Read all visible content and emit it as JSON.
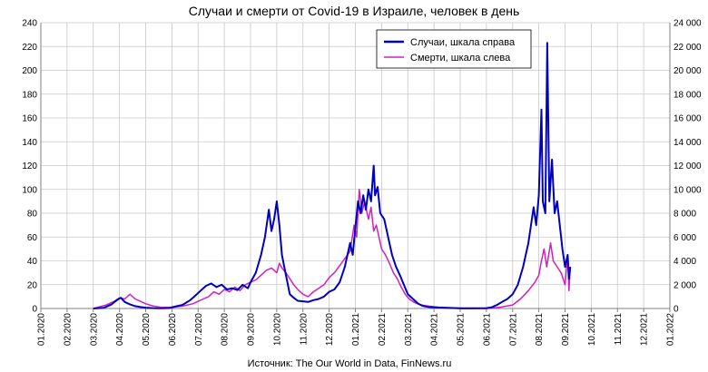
{
  "chart_data": {
    "type": "line",
    "title": "Случаи и смерти от Covid-19 в Израиле, человек в день",
    "source": "Источник: The Our World in Data, FinNews.ru",
    "x_ticks": [
      "01.2020",
      "02.2020",
      "03.2020",
      "04.2020",
      "05.2020",
      "06.2020",
      "07.2020",
      "08.2020",
      "09.2020",
      "10.2020",
      "11.2020",
      "12.2020",
      "01.2021",
      "02.2021",
      "03.2021",
      "04.2021",
      "05.2021",
      "06.2021",
      "07.2021",
      "08.2021",
      "09.2021",
      "10.2021",
      "11.2021",
      "12.2021",
      "01.2022"
    ],
    "y_left": {
      "ticks": [
        "0",
        "20",
        "40",
        "60",
        "80",
        "100",
        "120",
        "140",
        "160",
        "180",
        "200",
        "220",
        "240"
      ],
      "lim": [
        0,
        240
      ]
    },
    "y_right": {
      "ticks": [
        "0",
        "2 000",
        "4 000",
        "6 000",
        "8 000",
        "10 000",
        "12 000",
        "14 000",
        "16 000",
        "18 000",
        "20 000",
        "22 000",
        "24 000"
      ],
      "lim": [
        0,
        24000
      ]
    },
    "legend": {
      "position": "top-right"
    },
    "grid": true,
    "series": [
      {
        "name": "Случаи, шкала справа",
        "axis": "right",
        "color": "#0000c0",
        "points": [
          [
            2.0,
            0
          ],
          [
            2.4,
            50
          ],
          [
            2.7,
            350
          ],
          [
            2.9,
            700
          ],
          [
            3.05,
            900
          ],
          [
            3.2,
            550
          ],
          [
            3.4,
            350
          ],
          [
            3.6,
            200
          ],
          [
            3.8,
            120
          ],
          [
            4.0,
            70
          ],
          [
            4.3,
            30
          ],
          [
            4.6,
            20
          ],
          [
            4.9,
            40
          ],
          [
            5.1,
            150
          ],
          [
            5.4,
            300
          ],
          [
            5.7,
            700
          ],
          [
            5.9,
            1100
          ],
          [
            6.1,
            1500
          ],
          [
            6.3,
            1900
          ],
          [
            6.5,
            2100
          ],
          [
            6.7,
            1800
          ],
          [
            6.9,
            2000
          ],
          [
            7.1,
            1600
          ],
          [
            7.3,
            1700
          ],
          [
            7.5,
            1550
          ],
          [
            7.7,
            2000
          ],
          [
            7.9,
            1700
          ],
          [
            8.0,
            2200
          ],
          [
            8.2,
            3000
          ],
          [
            8.4,
            4500
          ],
          [
            8.55,
            6000
          ],
          [
            8.7,
            8300
          ],
          [
            8.8,
            6500
          ],
          [
            8.9,
            7500
          ],
          [
            9.0,
            9000
          ],
          [
            9.1,
            7000
          ],
          [
            9.2,
            4500
          ],
          [
            9.35,
            2800
          ],
          [
            9.5,
            1200
          ],
          [
            9.65,
            900
          ],
          [
            9.8,
            650
          ],
          [
            10.0,
            600
          ],
          [
            10.2,
            550
          ],
          [
            10.4,
            700
          ],
          [
            10.6,
            800
          ],
          [
            10.8,
            1000
          ],
          [
            11.0,
            1400
          ],
          [
            11.2,
            1600
          ],
          [
            11.4,
            2200
          ],
          [
            11.6,
            3500
          ],
          [
            11.8,
            5500
          ],
          [
            11.9,
            4500
          ],
          [
            12.0,
            6800
          ],
          [
            12.1,
            9000
          ],
          [
            12.2,
            8000
          ],
          [
            12.3,
            9500
          ],
          [
            12.4,
            8300
          ],
          [
            12.5,
            10000
          ],
          [
            12.6,
            9000
          ],
          [
            12.7,
            12000
          ],
          [
            12.75,
            9500
          ],
          [
            12.85,
            10200
          ],
          [
            12.95,
            8000
          ],
          [
            13.1,
            7500
          ],
          [
            13.25,
            6000
          ],
          [
            13.4,
            4500
          ],
          [
            13.55,
            3500
          ],
          [
            13.7,
            2800
          ],
          [
            13.85,
            2000
          ],
          [
            14.0,
            1200
          ],
          [
            14.2,
            800
          ],
          [
            14.4,
            400
          ],
          [
            14.6,
            200
          ],
          [
            14.8,
            120
          ],
          [
            15.0,
            100
          ],
          [
            15.5,
            50
          ],
          [
            16.0,
            20
          ],
          [
            16.5,
            20
          ],
          [
            17.0,
            30
          ],
          [
            17.2,
            100
          ],
          [
            17.4,
            300
          ],
          [
            17.6,
            550
          ],
          [
            17.8,
            800
          ],
          [
            18.0,
            1200
          ],
          [
            18.2,
            2000
          ],
          [
            18.4,
            3500
          ],
          [
            18.6,
            5500
          ],
          [
            18.7,
            7000
          ],
          [
            18.8,
            8500
          ],
          [
            18.9,
            7000
          ],
          [
            19.0,
            9500
          ],
          [
            19.1,
            16700
          ],
          [
            19.15,
            9000
          ],
          [
            19.25,
            8000
          ],
          [
            19.32,
            22300
          ],
          [
            19.4,
            9000
          ],
          [
            19.5,
            12500
          ],
          [
            19.6,
            8000
          ],
          [
            19.7,
            9000
          ],
          [
            19.8,
            7000
          ],
          [
            19.9,
            5000
          ],
          [
            20.0,
            3500
          ],
          [
            20.1,
            4500
          ],
          [
            20.15,
            2500
          ],
          [
            20.2,
            3500
          ]
        ]
      },
      {
        "name": "Смерти, шкала слева",
        "axis": "left",
        "color": "#d020c0",
        "points": [
          [
            2.0,
            0
          ],
          [
            2.5,
            3
          ],
          [
            2.8,
            6
          ],
          [
            3.0,
            9
          ],
          [
            3.2,
            8
          ],
          [
            3.4,
            12
          ],
          [
            3.6,
            8
          ],
          [
            3.8,
            6
          ],
          [
            4.0,
            4
          ],
          [
            4.3,
            2
          ],
          [
            4.6,
            1
          ],
          [
            5.0,
            1
          ],
          [
            5.4,
            2
          ],
          [
            5.8,
            4
          ],
          [
            6.0,
            6
          ],
          [
            6.2,
            8
          ],
          [
            6.4,
            10
          ],
          [
            6.6,
            14
          ],
          [
            6.8,
            12
          ],
          [
            7.0,
            16
          ],
          [
            7.2,
            14
          ],
          [
            7.4,
            18
          ],
          [
            7.6,
            15
          ],
          [
            7.8,
            20
          ],
          [
            8.0,
            22
          ],
          [
            8.2,
            24
          ],
          [
            8.4,
            28
          ],
          [
            8.6,
            32
          ],
          [
            8.8,
            34
          ],
          [
            9.0,
            30
          ],
          [
            9.1,
            38
          ],
          [
            9.2,
            34
          ],
          [
            9.35,
            30
          ],
          [
            9.5,
            25
          ],
          [
            9.65,
            20
          ],
          [
            9.8,
            16
          ],
          [
            10.0,
            12
          ],
          [
            10.2,
            10
          ],
          [
            10.4,
            14
          ],
          [
            10.6,
            17
          ],
          [
            10.8,
            20
          ],
          [
            11.0,
            26
          ],
          [
            11.2,
            30
          ],
          [
            11.4,
            36
          ],
          [
            11.6,
            42
          ],
          [
            11.8,
            48
          ],
          [
            11.95,
            70
          ],
          [
            12.05,
            60
          ],
          [
            12.15,
            100
          ],
          [
            12.25,
            80
          ],
          [
            12.35,
            90
          ],
          [
            12.5,
            75
          ],
          [
            12.6,
            85
          ],
          [
            12.7,
            65
          ],
          [
            12.8,
            70
          ],
          [
            12.9,
            60
          ],
          [
            13.0,
            50
          ],
          [
            13.15,
            45
          ],
          [
            13.3,
            38
          ],
          [
            13.45,
            30
          ],
          [
            13.6,
            25
          ],
          [
            13.75,
            18
          ],
          [
            13.9,
            12
          ],
          [
            14.05,
            8
          ],
          [
            14.25,
            5
          ],
          [
            14.5,
            3
          ],
          [
            14.8,
            2
          ],
          [
            15.2,
            1
          ],
          [
            16.0,
            0
          ],
          [
            17.0,
            0
          ],
          [
            17.5,
            1
          ],
          [
            18.0,
            3
          ],
          [
            18.3,
            8
          ],
          [
            18.6,
            15
          ],
          [
            18.85,
            22
          ],
          [
            19.0,
            28
          ],
          [
            19.1,
            40
          ],
          [
            19.2,
            50
          ],
          [
            19.3,
            35
          ],
          [
            19.45,
            55
          ],
          [
            19.55,
            40
          ],
          [
            19.7,
            35
          ],
          [
            19.85,
            30
          ],
          [
            20.0,
            20
          ],
          [
            20.1,
            45
          ],
          [
            20.15,
            15
          ],
          [
            20.2,
            35
          ]
        ]
      }
    ]
  }
}
